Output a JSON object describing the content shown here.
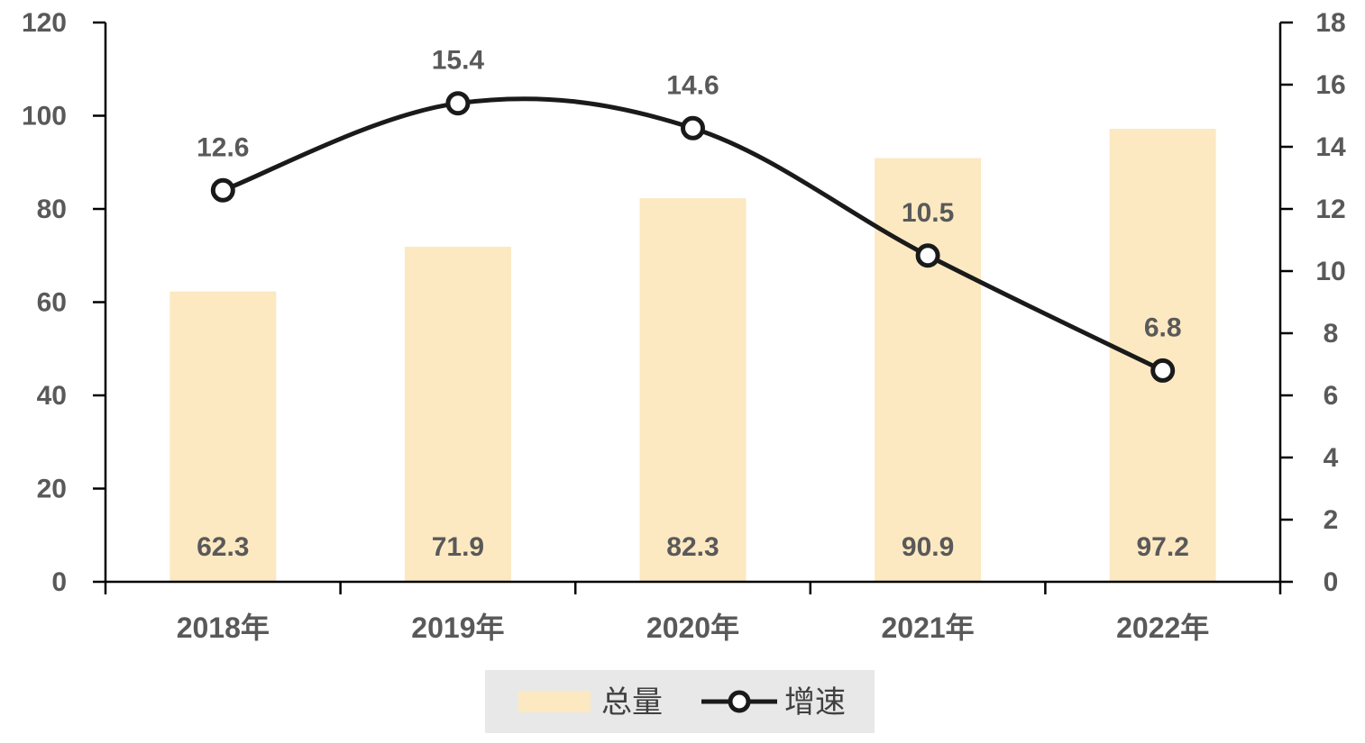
{
  "chart_data": {
    "type": "bar",
    "categories": [
      "2018年",
      "2019年",
      "2020年",
      "2021年",
      "2022年"
    ],
    "series": [
      {
        "name": "总量",
        "type": "bar",
        "axis": "left",
        "values": [
          62.3,
          71.9,
          82.3,
          90.9,
          97.2
        ],
        "color": "#FCE9C2"
      },
      {
        "name": "增速",
        "type": "line",
        "axis": "right",
        "values": [
          12.6,
          15.4,
          14.6,
          10.5,
          6.8
        ],
        "color": "#1A1A1A",
        "smooth": true,
        "marker": "circle-open"
      }
    ],
    "y_left": {
      "min": 0,
      "max": 120,
      "step": 20,
      "ticks": [
        "0",
        "20",
        "40",
        "60",
        "80",
        "100",
        "120"
      ]
    },
    "y_right": {
      "min": 0,
      "max": 18,
      "step": 2,
      "ticks": [
        "0",
        "2",
        "4",
        "6",
        "8",
        "10",
        "12",
        "14",
        "16",
        "18"
      ]
    },
    "bar_labels": [
      "62.3",
      "71.9",
      "82.3",
      "90.9",
      "97.2"
    ],
    "line_labels": [
      "12.6",
      "15.4",
      "14.6",
      "10.5",
      "6.8"
    ],
    "legend": {
      "position": "bottom",
      "background": "#E8E8E8",
      "items": [
        {
          "label": "总量",
          "kind": "bar"
        },
        {
          "label": "增速",
          "kind": "line"
        }
      ]
    },
    "grid": false
  }
}
